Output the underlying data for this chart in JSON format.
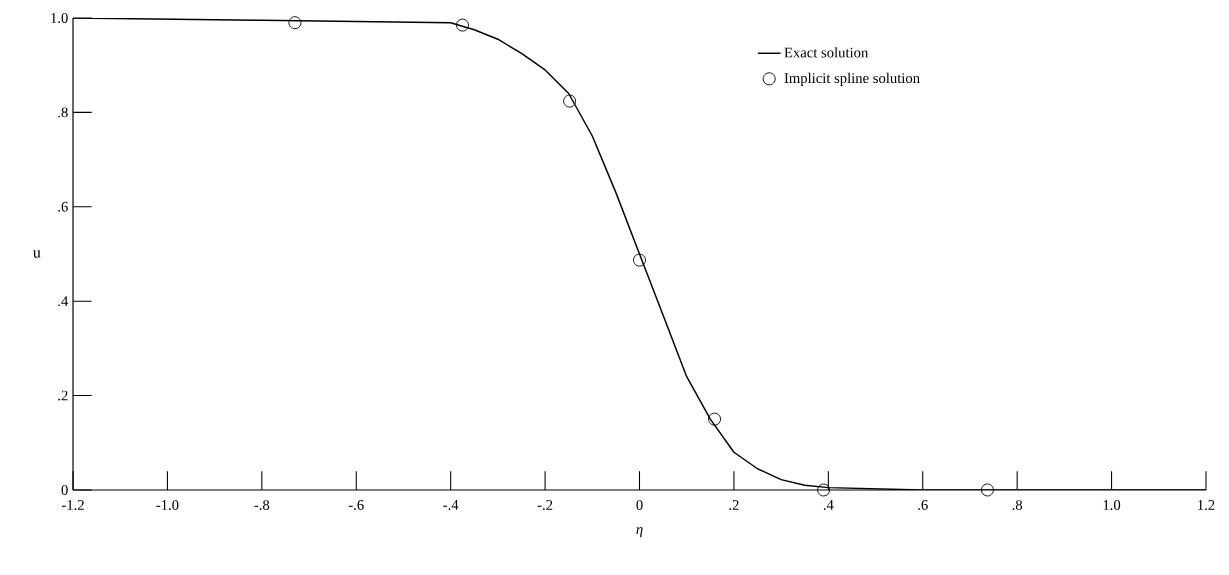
{
  "chart_data": {
    "type": "line",
    "xlabel": "η",
    "ylabel": "u",
    "xlim": [
      -1.2,
      1.2
    ],
    "ylim": [
      0,
      1.0
    ],
    "xticks": [
      {
        "value": -1.2,
        "label": "-1.2"
      },
      {
        "value": -1.0,
        "label": "-1.0"
      },
      {
        "value": -0.8,
        "label": "-.8"
      },
      {
        "value": -0.6,
        "label": "-.6"
      },
      {
        "value": -0.4,
        "label": "-.4"
      },
      {
        "value": -0.2,
        "label": "-.2"
      },
      {
        "value": 0,
        "label": "0"
      },
      {
        "value": 0.2,
        "label": ".2"
      },
      {
        "value": 0.4,
        "label": ".4"
      },
      {
        "value": 0.6,
        "label": ".6"
      },
      {
        "value": 0.8,
        "label": ".8"
      },
      {
        "value": 1.0,
        "label": "1.0"
      },
      {
        "value": 1.2,
        "label": "1.2"
      }
    ],
    "yticks": [
      {
        "value": 0,
        "label": "0"
      },
      {
        "value": 0.2,
        "label": ".2"
      },
      {
        "value": 0.4,
        "label": ".4"
      },
      {
        "value": 0.6,
        "label": ".6"
      },
      {
        "value": 0.8,
        "label": ".8"
      },
      {
        "value": 1.0,
        "label": "1.0"
      }
    ],
    "legend": "top right",
    "grid": false,
    "series": [
      {
        "name": "Exact solution",
        "color": "#000000",
        "marker": "none",
        "line_style": "solid",
        "x": [
          -1.2,
          -0.8,
          -0.4,
          -0.35,
          -0.3,
          -0.25,
          -0.2,
          -0.15,
          -0.1,
          -0.05,
          0,
          0.05,
          0.1,
          0.15,
          0.2,
          0.25,
          0.3,
          0.35,
          0.4,
          0.6,
          1.2
        ],
        "values": [
          1.0,
          0.995,
          0.99,
          0.975,
          0.955,
          0.925,
          0.89,
          0.84,
          0.75,
          0.63,
          0.5,
          0.37,
          0.24,
          0.15,
          0.08,
          0.045,
          0.022,
          0.01,
          0.005,
          0.0,
          0.0
        ]
      },
      {
        "name": "Implicit spline solution",
        "type": "scatter",
        "color": "#000000",
        "marker": "circle",
        "x": [
          -0.73,
          -0.375,
          -0.148,
          0,
          0.159,
          0.39,
          0.737
        ],
        "values": [
          0.99,
          0.985,
          0.824,
          0.487,
          0.15,
          0.0,
          0.0
        ]
      }
    ]
  }
}
